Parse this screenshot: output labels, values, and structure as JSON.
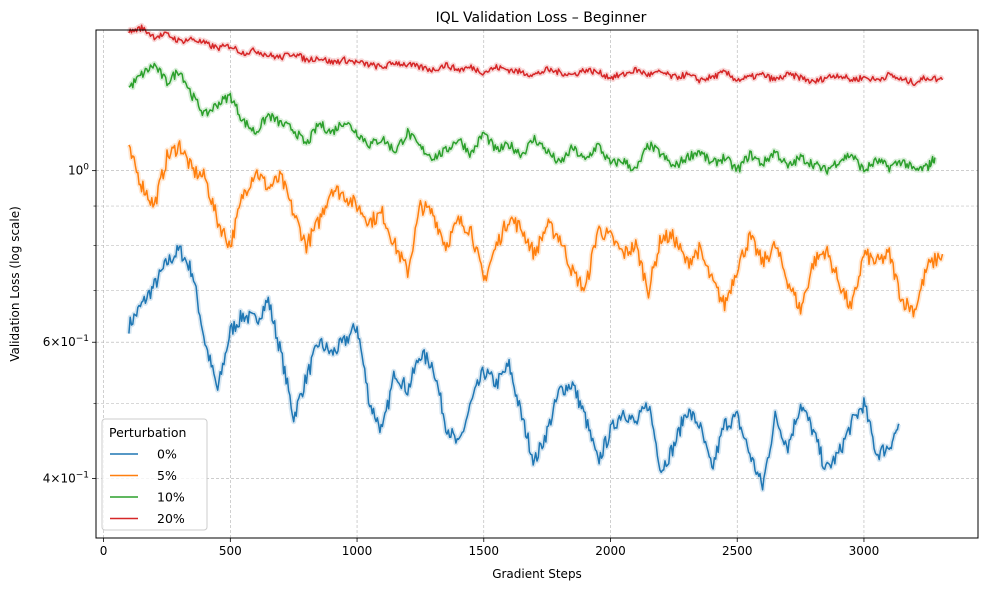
{
  "chart_data": {
    "type": "line",
    "title": "IQL Validation Loss – Beginner",
    "xlabel": "Gradient Steps",
    "ylabel": "Validation Loss (log scale)",
    "y_scale": "log",
    "xlim": [
      -30,
      3450
    ],
    "ylim": [
      0.335,
      1.52
    ],
    "grid": true,
    "x_ticks": [
      {
        "value": 0,
        "label": "0"
      },
      {
        "value": 500,
        "label": "500"
      },
      {
        "value": 1000,
        "label": "1000"
      },
      {
        "value": 1500,
        "label": "1500"
      },
      {
        "value": 2000,
        "label": "2000"
      },
      {
        "value": 2500,
        "label": "2500"
      },
      {
        "value": 3000,
        "label": "3000"
      }
    ],
    "y_major_ticks": [
      {
        "value": 0.4,
        "base": "4",
        "exp": "−1"
      },
      {
        "value": 0.6,
        "base": "6",
        "exp": "−1"
      },
      {
        "value": 1.0,
        "label": "10",
        "exp": "0"
      }
    ],
    "y_minor_ticks": [
      0.5,
      0.7,
      0.8,
      0.9
    ],
    "legend": {
      "title": "Perturbation",
      "placement": "lower-left"
    },
    "series": [
      {
        "name": "0%",
        "color": "#1f77b4",
        "x": [
          100,
          150,
          200,
          250,
          300,
          350,
          400,
          450,
          500,
          550,
          600,
          650,
          700,
          750,
          800,
          850,
          900,
          950,
          1000,
          1050,
          1100,
          1150,
          1200,
          1250,
          1300,
          1350,
          1400,
          1450,
          1500,
          1550,
          1600,
          1650,
          1700,
          1750,
          1800,
          1850,
          1900,
          1950,
          2000,
          2050,
          2100,
          2150,
          2200,
          2250,
          2300,
          2350,
          2400,
          2450,
          2500,
          2550,
          2600,
          2650,
          2700,
          2750,
          2800,
          2850,
          2900,
          2950,
          3000,
          3050,
          3100,
          3140
        ],
        "y": [
          0.63,
          0.67,
          0.71,
          0.76,
          0.79,
          0.74,
          0.6,
          0.52,
          0.62,
          0.65,
          0.64,
          0.68,
          0.58,
          0.48,
          0.54,
          0.6,
          0.58,
          0.6,
          0.63,
          0.5,
          0.46,
          0.55,
          0.52,
          0.58,
          0.56,
          0.47,
          0.44,
          0.5,
          0.55,
          0.53,
          0.56,
          0.48,
          0.42,
          0.46,
          0.52,
          0.53,
          0.48,
          0.42,
          0.46,
          0.49,
          0.47,
          0.5,
          0.41,
          0.44,
          0.49,
          0.47,
          0.41,
          0.47,
          0.48,
          0.43,
          0.39,
          0.48,
          0.44,
          0.5,
          0.46,
          0.41,
          0.43,
          0.47,
          0.5,
          0.43,
          0.44,
          0.47
        ]
      },
      {
        "name": "5%",
        "color": "#ff7f0e",
        "x": [
          100,
          150,
          200,
          250,
          300,
          350,
          400,
          450,
          500,
          550,
          600,
          650,
          700,
          750,
          800,
          850,
          900,
          950,
          1000,
          1050,
          1100,
          1150,
          1200,
          1250,
          1300,
          1350,
          1400,
          1450,
          1500,
          1550,
          1600,
          1650,
          1700,
          1750,
          1800,
          1850,
          1900,
          1950,
          2000,
          2050,
          2100,
          2150,
          2200,
          2250,
          2300,
          2350,
          2400,
          2450,
          2500,
          2550,
          2600,
          2650,
          2700,
          2750,
          2800,
          2850,
          2900,
          2950,
          3000,
          3050,
          3100,
          3150,
          3200,
          3250,
          3310
        ],
        "y": [
          1.06,
          0.96,
          0.9,
          1.04,
          1.08,
          1.0,
          0.98,
          0.86,
          0.8,
          0.93,
          1.0,
          0.95,
          0.98,
          0.88,
          0.8,
          0.86,
          0.95,
          0.93,
          0.9,
          0.86,
          0.88,
          0.8,
          0.74,
          0.9,
          0.88,
          0.8,
          0.86,
          0.84,
          0.72,
          0.8,
          0.87,
          0.84,
          0.78,
          0.85,
          0.82,
          0.74,
          0.7,
          0.84,
          0.82,
          0.78,
          0.8,
          0.7,
          0.82,
          0.82,
          0.76,
          0.79,
          0.72,
          0.67,
          0.75,
          0.82,
          0.76,
          0.8,
          0.72,
          0.66,
          0.76,
          0.79,
          0.72,
          0.66,
          0.78,
          0.76,
          0.78,
          0.68,
          0.66,
          0.75,
          0.78
        ]
      },
      {
        "name": "10%",
        "color": "#2ca02c",
        "x": [
          100,
          150,
          200,
          250,
          300,
          350,
          400,
          450,
          500,
          550,
          600,
          650,
          700,
          750,
          800,
          850,
          900,
          950,
          1000,
          1050,
          1100,
          1150,
          1200,
          1250,
          1300,
          1350,
          1400,
          1450,
          1500,
          1550,
          1600,
          1650,
          1700,
          1750,
          1800,
          1850,
          1900,
          1950,
          2000,
          2050,
          2100,
          2150,
          2200,
          2250,
          2300,
          2350,
          2400,
          2450,
          2500,
          2550,
          2600,
          2650,
          2700,
          2750,
          2800,
          2850,
          2900,
          2950,
          3000,
          3050,
          3100,
          3150,
          3200,
          3250,
          3280
        ],
        "y": [
          1.28,
          1.33,
          1.37,
          1.3,
          1.35,
          1.25,
          1.18,
          1.22,
          1.25,
          1.16,
          1.12,
          1.18,
          1.15,
          1.13,
          1.08,
          1.15,
          1.12,
          1.16,
          1.12,
          1.08,
          1.1,
          1.06,
          1.12,
          1.07,
          1.04,
          1.06,
          1.1,
          1.05,
          1.12,
          1.06,
          1.08,
          1.05,
          1.1,
          1.06,
          1.02,
          1.07,
          1.03,
          1.08,
          1.02,
          1.03,
          1.0,
          1.08,
          1.05,
          1.01,
          1.04,
          1.06,
          1.02,
          1.04,
          1.0,
          1.05,
          1.02,
          1.06,
          1.01,
          1.04,
          1.02,
          1.0,
          1.03,
          1.05,
          1.0,
          1.03,
          1.01,
          1.03,
          1.0,
          1.01,
          1.04
        ]
      },
      {
        "name": "20%",
        "color": "#d62728",
        "x": [
          100,
          150,
          200,
          250,
          300,
          350,
          400,
          450,
          500,
          550,
          600,
          650,
          700,
          750,
          800,
          850,
          900,
          950,
          1000,
          1050,
          1100,
          1150,
          1200,
          1250,
          1300,
          1350,
          1400,
          1450,
          1500,
          1550,
          1600,
          1650,
          1700,
          1750,
          1800,
          1850,
          1900,
          1950,
          2000,
          2050,
          2100,
          2150,
          2200,
          2250,
          2300,
          2350,
          2400,
          2450,
          2500,
          2550,
          2600,
          2650,
          2700,
          2750,
          2800,
          2850,
          2900,
          2950,
          3000,
          3050,
          3100,
          3150,
          3200,
          3250,
          3310
        ],
        "y": [
          1.51,
          1.53,
          1.49,
          1.5,
          1.47,
          1.48,
          1.46,
          1.44,
          1.45,
          1.42,
          1.43,
          1.41,
          1.4,
          1.42,
          1.39,
          1.4,
          1.38,
          1.39,
          1.38,
          1.37,
          1.36,
          1.38,
          1.37,
          1.36,
          1.35,
          1.37,
          1.35,
          1.36,
          1.34,
          1.36,
          1.35,
          1.34,
          1.33,
          1.35,
          1.34,
          1.33,
          1.35,
          1.34,
          1.32,
          1.33,
          1.35,
          1.33,
          1.34,
          1.32,
          1.33,
          1.31,
          1.32,
          1.34,
          1.31,
          1.32,
          1.33,
          1.31,
          1.33,
          1.32,
          1.3,
          1.32,
          1.33,
          1.31,
          1.32,
          1.31,
          1.33,
          1.31,
          1.3,
          1.32,
          1.31
        ]
      }
    ]
  }
}
